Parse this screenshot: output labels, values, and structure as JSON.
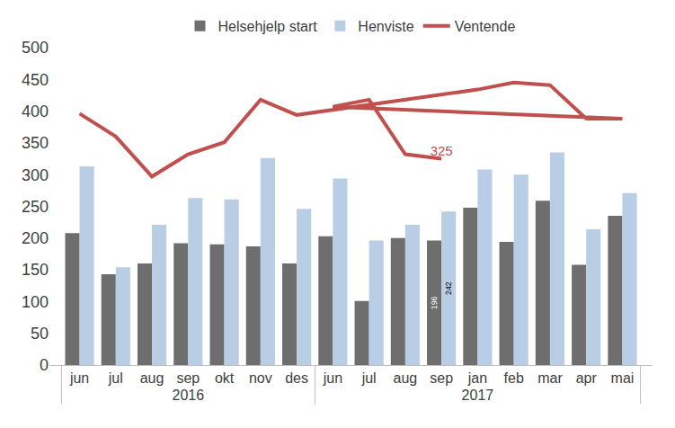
{
  "chart_data": {
    "type": "bar",
    "categories": [
      "jun",
      "jul",
      "aug",
      "sep",
      "okt",
      "nov",
      "des",
      "jan",
      "feb",
      "mar",
      "apr",
      "mai",
      "jun",
      "jul",
      "aug",
      "sep"
    ],
    "years": [
      "2016",
      "2016",
      "2016",
      "2016",
      "2016",
      "2016",
      "2016",
      "2017",
      "2017",
      "2017",
      "2017",
      "2017",
      "2017",
      "2017",
      "2017",
      "2017"
    ],
    "series": [
      {
        "name": "Helsehjelp start",
        "type": "bar",
        "color": "#6e6e6e",
        "values": [
          208,
          143,
          160,
          192,
          190,
          187,
          160,
          248,
          194,
          259,
          158,
          235,
          203,
          101,
          200,
          196
        ],
        "value_labels": [
          null,
          null,
          null,
          null,
          null,
          null,
          null,
          null,
          null,
          null,
          null,
          null,
          null,
          null,
          null,
          "196"
        ]
      },
      {
        "name": "Henviste",
        "type": "bar",
        "color": "#b9cde5",
        "values": [
          313,
          154,
          221,
          263,
          261,
          326,
          246,
          308,
          300,
          335,
          214,
          271,
          294,
          196,
          221,
          242
        ],
        "value_labels": [
          null,
          null,
          null,
          null,
          null,
          null,
          null,
          null,
          null,
          null,
          null,
          null,
          null,
          null,
          null,
          "242"
        ]
      },
      {
        "name": "Ventende",
        "type": "line",
        "color": "#c0504d",
        "values": [
          396,
          360,
          297,
          332,
          351,
          418,
          394,
          434,
          445,
          441,
          388,
          388,
          407,
          418,
          332,
          325
        ],
        "value_labels": [
          null,
          null,
          null,
          null,
          null,
          null,
          null,
          null,
          null,
          null,
          null,
          null,
          null,
          null,
          null,
          "325"
        ]
      }
    ],
    "ylim": [
      0,
      500
    ],
    "yticks": [
      0,
      50,
      100,
      150,
      200,
      250,
      300,
      350,
      400,
      450,
      500
    ],
    "grid": false,
    "legend": "top",
    "data_labels": true
  }
}
